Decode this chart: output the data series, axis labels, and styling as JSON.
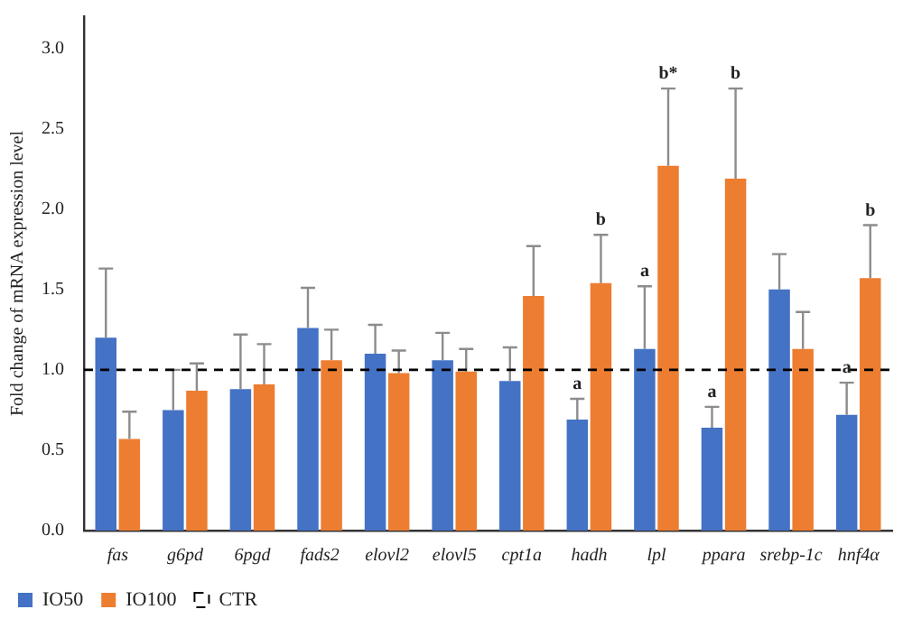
{
  "chart_data": {
    "type": "bar",
    "ylabel": "Fold change of mRNA expression level",
    "categories": [
      "fas",
      "g6pd",
      "6pgd",
      "fads2",
      "elovl2",
      "elovl5",
      "cpt1a",
      "hadh",
      "lpl",
      "ppara",
      "srebp-1c",
      "hnf4α"
    ],
    "series": [
      {
        "name": "IO50",
        "color": "#4472c4",
        "values": [
          1.2,
          0.75,
          0.88,
          1.26,
          1.1,
          1.06,
          0.93,
          0.69,
          1.13,
          0.64,
          1.5,
          0.72
        ],
        "errors": [
          [
            1.2,
            1.63
          ],
          [
            0.75,
            1.0
          ],
          [
            0.88,
            1.22
          ],
          [
            1.26,
            1.51
          ],
          [
            1.1,
            1.28
          ],
          [
            1.06,
            1.23
          ],
          [
            0.93,
            1.14
          ],
          [
            0.69,
            0.82
          ],
          [
            1.13,
            1.52
          ],
          [
            0.64,
            0.77
          ],
          [
            1.5,
            1.72
          ],
          [
            0.72,
            0.92
          ]
        ]
      },
      {
        "name": "IO100",
        "color": "#ed7d31",
        "values": [
          0.57,
          0.87,
          0.91,
          1.06,
          0.98,
          0.99,
          1.46,
          1.54,
          2.27,
          2.19,
          1.13,
          1.57
        ],
        "errors": [
          [
            0.57,
            0.74
          ],
          [
            0.87,
            1.04
          ],
          [
            0.91,
            1.16
          ],
          [
            1.06,
            1.25
          ],
          [
            0.98,
            1.12
          ],
          [
            0.99,
            1.13
          ],
          [
            1.46,
            1.77
          ],
          [
            1.54,
            1.84
          ],
          [
            2.27,
            2.75
          ],
          [
            2.19,
            2.75
          ],
          [
            1.13,
            1.36
          ],
          [
            1.57,
            1.9
          ]
        ]
      }
    ],
    "ylim": [
      0,
      3.2
    ],
    "yticks": [
      {
        "value": 0,
        "label": "0.0"
      },
      {
        "value": 0.5,
        "label": "0.5"
      },
      {
        "value": 1,
        "label": "1.0"
      },
      {
        "value": 1.5,
        "label": "1.5"
      },
      {
        "value": 2,
        "label": "2.0"
      },
      {
        "value": 2.5,
        "label": "2.5"
      },
      {
        "value": 3,
        "label": "3.0"
      }
    ],
    "grid": false,
    "legend": "bottom left",
    "ref_lines": [
      {
        "axis": "y",
        "value": 1,
        "label": "CTR",
        "line_style": "dashed",
        "color": "#000000"
      }
    ],
    "annotations": [
      {
        "text": "a",
        "x": "hadh",
        "y": 0.82
      },
      {
        "text": "b",
        "x": "hadh",
        "y": 1.84
      },
      {
        "text": "a",
        "x": "lpl",
        "y": 1.52
      },
      {
        "text": "b*",
        "x": "lpl",
        "y": 2.75
      },
      {
        "text": "a",
        "x": "ppara",
        "y": 0.77
      },
      {
        "text": "b",
        "x": "ppara",
        "y": 2.75
      },
      {
        "text": "a",
        "x": "hnf4α",
        "y": 0.92
      },
      {
        "text": "b",
        "x": "hnf4α",
        "y": 1.9
      }
    ]
  }
}
